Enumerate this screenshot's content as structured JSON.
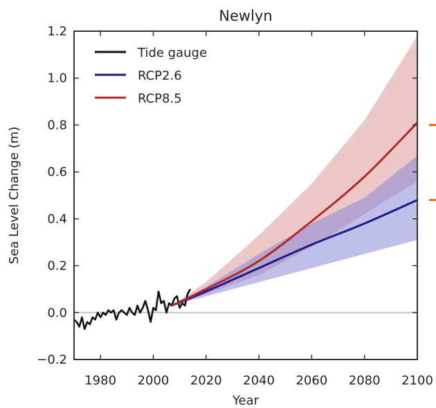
{
  "chart_data": {
    "type": "line",
    "title": "Newlyn",
    "xlabel": "Year",
    "ylabel": "Sea Level Change (m)",
    "xlim": [
      1970,
      2100
    ],
    "ylim": [
      -0.2,
      1.2
    ],
    "xticks": [
      1980,
      2000,
      2020,
      2040,
      2060,
      2080,
      2100
    ],
    "yticks": [
      -0.2,
      0.0,
      0.2,
      0.4,
      0.6,
      0.8,
      1.0,
      1.2
    ],
    "ytick_labels": [
      "−0.2",
      "0.0",
      "0.2",
      "0.4",
      "0.6",
      "0.8",
      "1.0",
      "1.2"
    ],
    "legend_position": "top-left",
    "zero_line": true,
    "series": [
      {
        "name": "Tide gauge",
        "color": "#111111",
        "x": [
          1970,
          1971,
          1972,
          1973,
          1974,
          1975,
          1976,
          1977,
          1978,
          1979,
          1980,
          1981,
          1982,
          1983,
          1984,
          1985,
          1986,
          1987,
          1988,
          1989,
          1990,
          1991,
          1992,
          1993,
          1994,
          1995,
          1996,
          1997,
          1998,
          1999,
          2000,
          2001,
          2002,
          2003,
          2004,
          2005,
          2006,
          2007,
          2008,
          2009,
          2010,
          2011,
          2012,
          2013,
          2014
        ],
        "y": [
          -0.03,
          -0.04,
          -0.06,
          -0.02,
          -0.07,
          -0.04,
          -0.05,
          -0.02,
          -0.03,
          0.0,
          -0.02,
          0.0,
          -0.01,
          0.01,
          0.0,
          0.01,
          -0.03,
          0.0,
          0.01,
          0.0,
          -0.01,
          0.02,
          0.0,
          -0.01,
          0.03,
          0.0,
          0.02,
          0.05,
          0.01,
          -0.04,
          0.02,
          0.01,
          0.09,
          0.04,
          0.05,
          0.0,
          0.04,
          0.03,
          0.06,
          0.07,
          0.02,
          0.04,
          0.03,
          0.08,
          0.1
        ]
      },
      {
        "name": "RCP2.6",
        "color": "#1a1a8c",
        "band_color": "#8a8ad6",
        "x": [
          2007,
          2020,
          2040,
          2060,
          2080,
          2100
        ],
        "y": [
          0.03,
          0.09,
          0.19,
          0.29,
          0.38,
          0.48
        ],
        "lower": [
          0.03,
          0.07,
          0.13,
          0.19,
          0.25,
          0.31
        ],
        "upper": [
          0.03,
          0.11,
          0.25,
          0.38,
          0.49,
          0.67
        ]
      },
      {
        "name": "RCP8.5",
        "color": "#b52626",
        "band_color": "#dc9a9a",
        "x": [
          2007,
          2020,
          2040,
          2060,
          2080,
          2100
        ],
        "y": [
          0.03,
          0.1,
          0.22,
          0.39,
          0.58,
          0.81
        ],
        "lower": [
          0.03,
          0.08,
          0.16,
          0.28,
          0.42,
          0.56
        ],
        "upper": [
          0.03,
          0.13,
          0.33,
          0.55,
          0.82,
          1.18
        ]
      }
    ],
    "right_edge_markers": [
      {
        "value": 0.8,
        "color": "#e06b1f"
      },
      {
        "value": 0.48,
        "color": "#e06b1f"
      }
    ]
  }
}
